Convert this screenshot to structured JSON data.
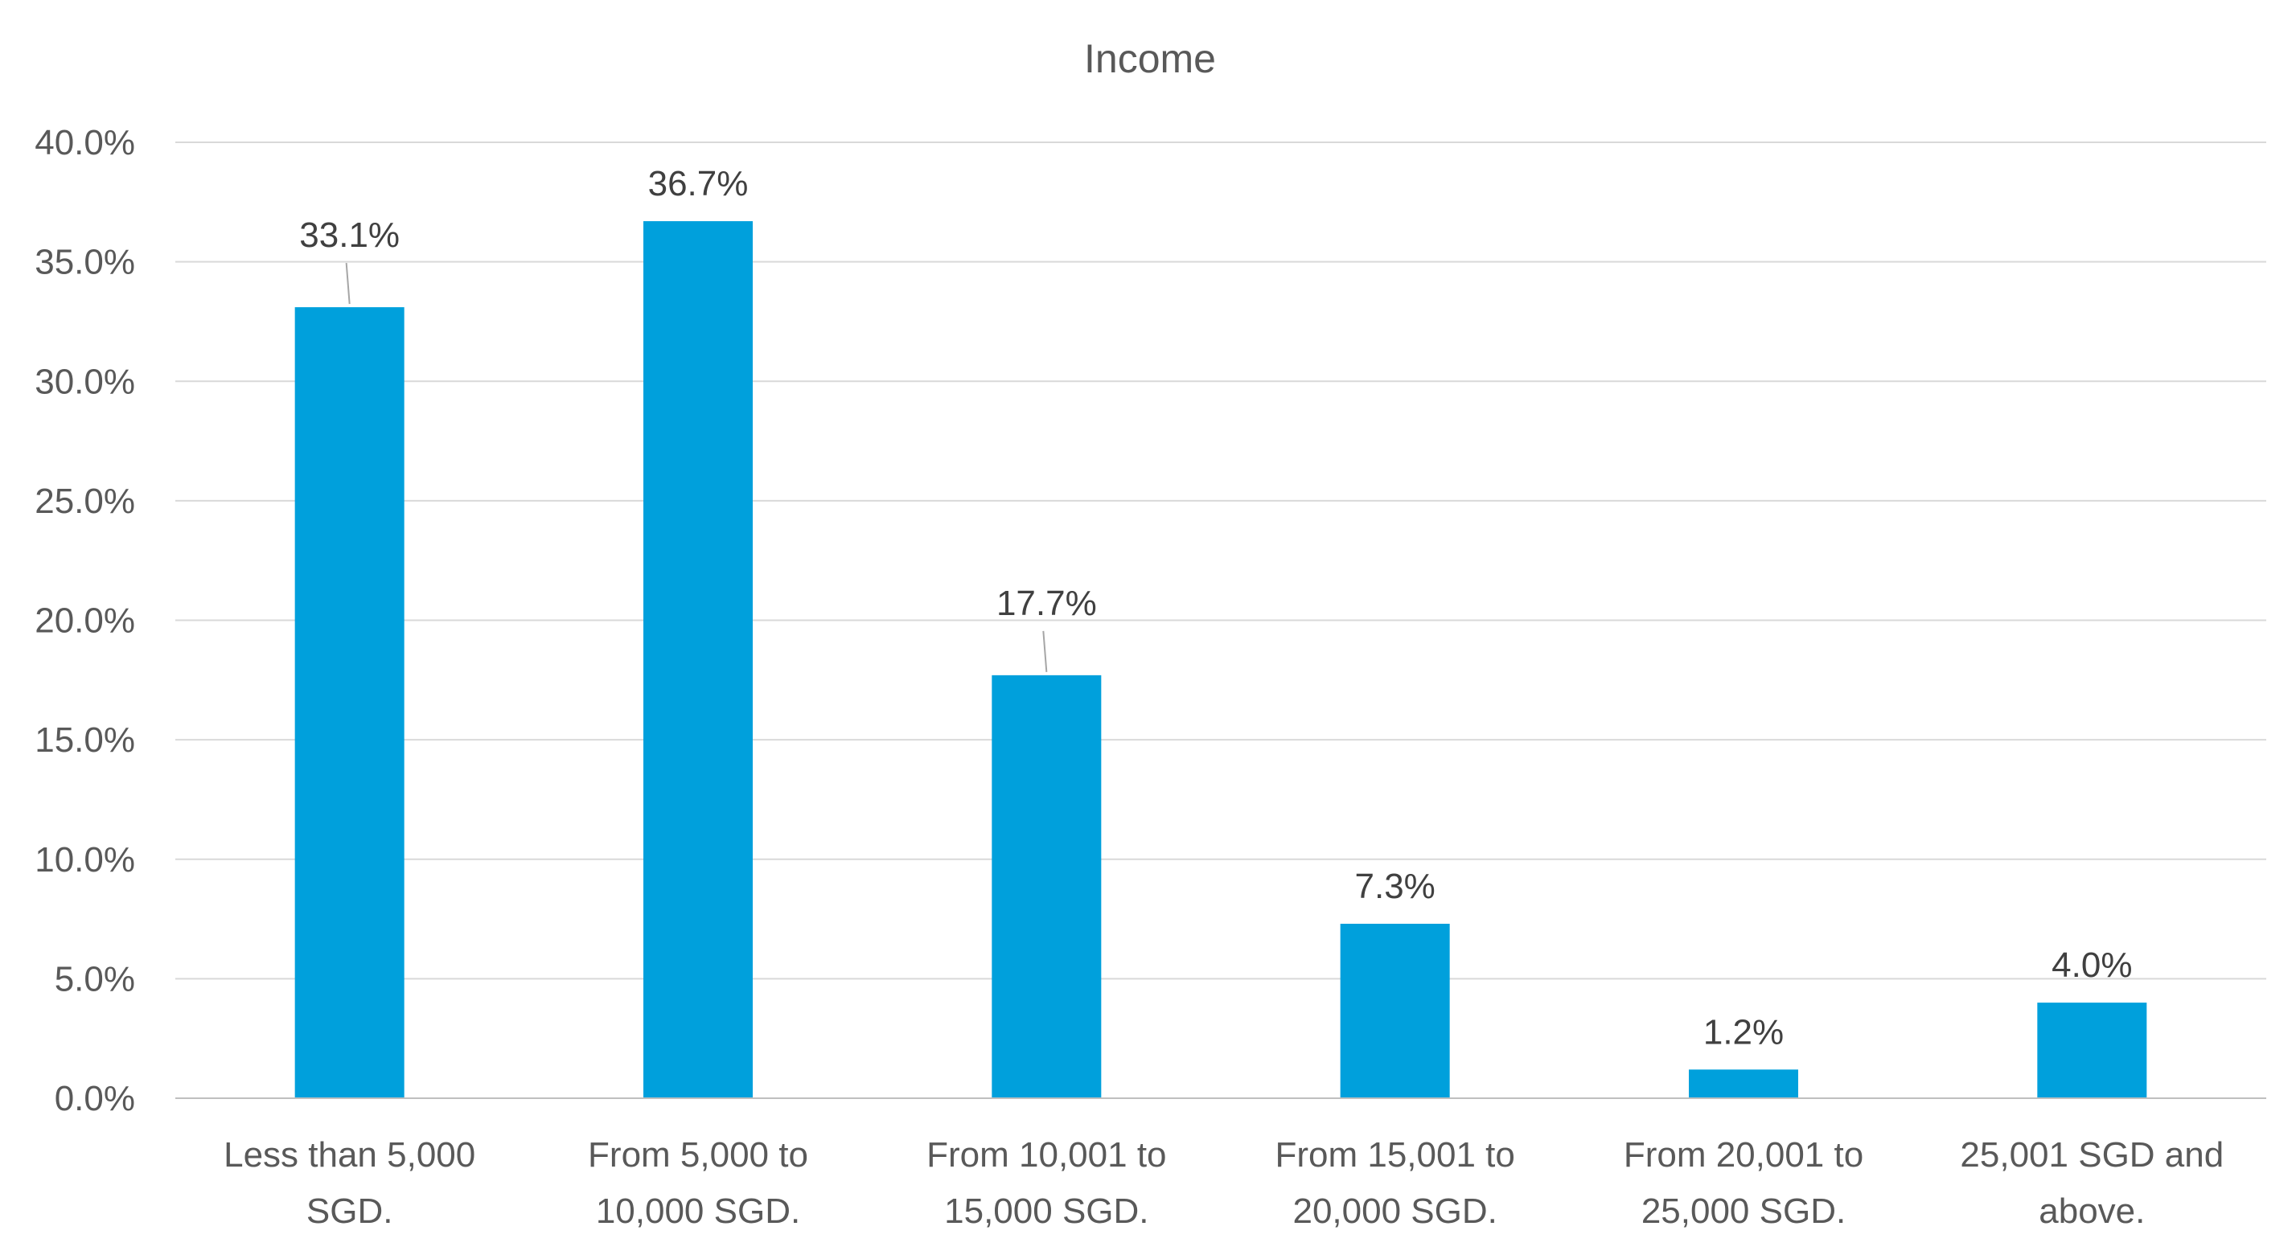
{
  "chart_data": {
    "type": "bar",
    "title": "Income",
    "xlabel": "",
    "ylabel": "",
    "categories": [
      [
        "Less than 5,000",
        "SGD."
      ],
      [
        "From 5,000 to",
        "10,000 SGD."
      ],
      [
        "From 10,001 to",
        "15,000 SGD."
      ],
      [
        "From 15,001 to",
        "20,000 SGD."
      ],
      [
        "From 20,001 to",
        "25,000 SGD."
      ],
      [
        "25,001 SGD and",
        "above."
      ]
    ],
    "values": [
      33.1,
      36.7,
      17.7,
      7.3,
      1.2,
      4.0
    ],
    "data_labels": [
      "33.1%",
      "36.7%",
      "17.7%",
      "7.3%",
      "1.2%",
      "4.0%"
    ],
    "ylim": [
      0,
      40
    ],
    "y_ticks": [
      "0.0%",
      "5.0%",
      "10.0%",
      "15.0%",
      "20.0%",
      "25.0%",
      "30.0%",
      "35.0%",
      "40.0%"
    ],
    "y_tick_values": [
      0,
      5,
      10,
      15,
      20,
      25,
      30,
      35,
      40
    ],
    "grid": true,
    "legend": "none",
    "bar_color": "#00a0dc"
  }
}
